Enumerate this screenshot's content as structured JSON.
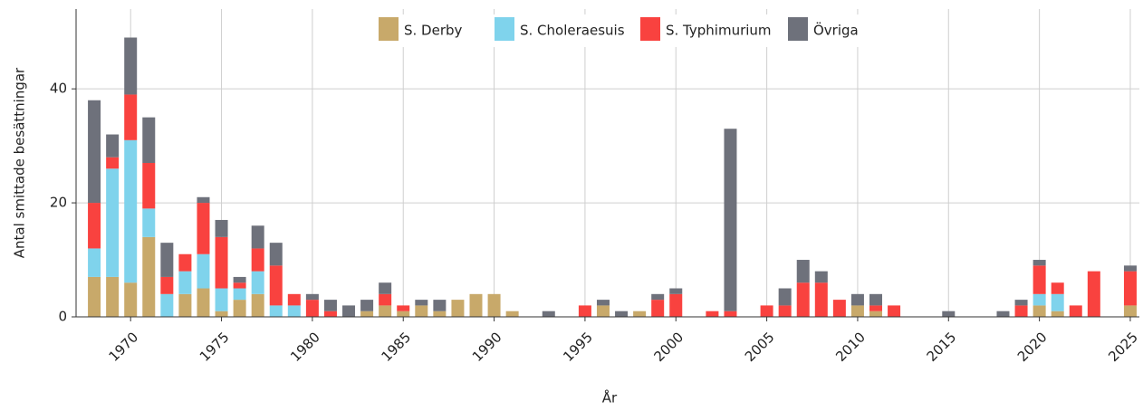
{
  "chart_data": {
    "type": "bar",
    "stacked": true,
    "x_label": "År",
    "y_label": "Antal smittade besättningar",
    "x": [
      1968,
      1969,
      1970,
      1971,
      1972,
      1973,
      1974,
      1975,
      1976,
      1977,
      1978,
      1979,
      1980,
      1981,
      1982,
      1983,
      1984,
      1985,
      1986,
      1987,
      1988,
      1989,
      1990,
      1991,
      1992,
      1993,
      1994,
      1995,
      1996,
      1997,
      1998,
      1999,
      2000,
      2001,
      2002,
      2003,
      2004,
      2005,
      2006,
      2007,
      2008,
      2009,
      2010,
      2011,
      2012,
      2013,
      2014,
      2015,
      2016,
      2017,
      2018,
      2019,
      2020,
      2021,
      2022,
      2023,
      2024,
      2025
    ],
    "series": [
      {
        "name": "S. Derby",
        "color": "#c8a96a",
        "values": [
          7,
          7,
          6,
          14,
          0,
          4,
          5,
          1,
          3,
          4,
          0,
          0,
          0,
          0,
          0,
          1,
          2,
          1,
          2,
          1,
          3,
          4,
          4,
          1,
          0,
          0,
          0,
          0,
          2,
          0,
          1,
          0,
          0,
          0,
          0,
          0,
          0,
          0,
          0,
          0,
          0,
          0,
          2,
          1,
          0,
          0,
          0,
          0,
          0,
          0,
          0,
          0,
          2,
          1,
          0,
          0,
          0,
          2
        ]
      },
      {
        "name": "S. Choleraesuis",
        "color": "#7fd3ec",
        "values": [
          5,
          19,
          25,
          5,
          4,
          4,
          6,
          4,
          2,
          4,
          2,
          2,
          0,
          0,
          0,
          0,
          0,
          0,
          0,
          0,
          0,
          0,
          0,
          0,
          0,
          0,
          0,
          0,
          0,
          0,
          0,
          0,
          0,
          0,
          0,
          0,
          0,
          0,
          0,
          0,
          0,
          0,
          0,
          0,
          0,
          0,
          0,
          0,
          0,
          0,
          0,
          0,
          2,
          3,
          0,
          0,
          0,
          0
        ]
      },
      {
        "name": "S. Typhimurium",
        "color": "#f9423f",
        "values": [
          8,
          2,
          8,
          8,
          3,
          3,
          9,
          9,
          1,
          4,
          7,
          2,
          3,
          1,
          0,
          0,
          2,
          1,
          0,
          0,
          0,
          0,
          0,
          0,
          0,
          0,
          0,
          2,
          0,
          0,
          0,
          3,
          4,
          0,
          1,
          1,
          0,
          2,
          2,
          6,
          6,
          3,
          0,
          1,
          2,
          0,
          0,
          0,
          0,
          0,
          0,
          2,
          5,
          2,
          2,
          8,
          0,
          6
        ]
      },
      {
        "name": "Övriga",
        "color": "#6e717b",
        "values": [
          18,
          4,
          10,
          8,
          6,
          0,
          1,
          3,
          1,
          4,
          4,
          0,
          1,
          2,
          2,
          2,
          2,
          0,
          1,
          2,
          0,
          0,
          0,
          0,
          0,
          1,
          0,
          0,
          1,
          1,
          0,
          1,
          1,
          0,
          0,
          32,
          0,
          0,
          3,
          4,
          2,
          0,
          2,
          2,
          0,
          0,
          0,
          1,
          0,
          0,
          1,
          1,
          1,
          0,
          0,
          0,
          0,
          1
        ]
      }
    ],
    "xlim": [
      1967,
      2025.5
    ],
    "xticks": [
      1970,
      1975,
      1980,
      1985,
      1990,
      1995,
      2000,
      2005,
      2010,
      2015,
      2020,
      2025
    ],
    "ylim": [
      0,
      54
    ],
    "yticks": [
      0,
      20,
      40
    ],
    "grid": true,
    "legend": "top"
  }
}
